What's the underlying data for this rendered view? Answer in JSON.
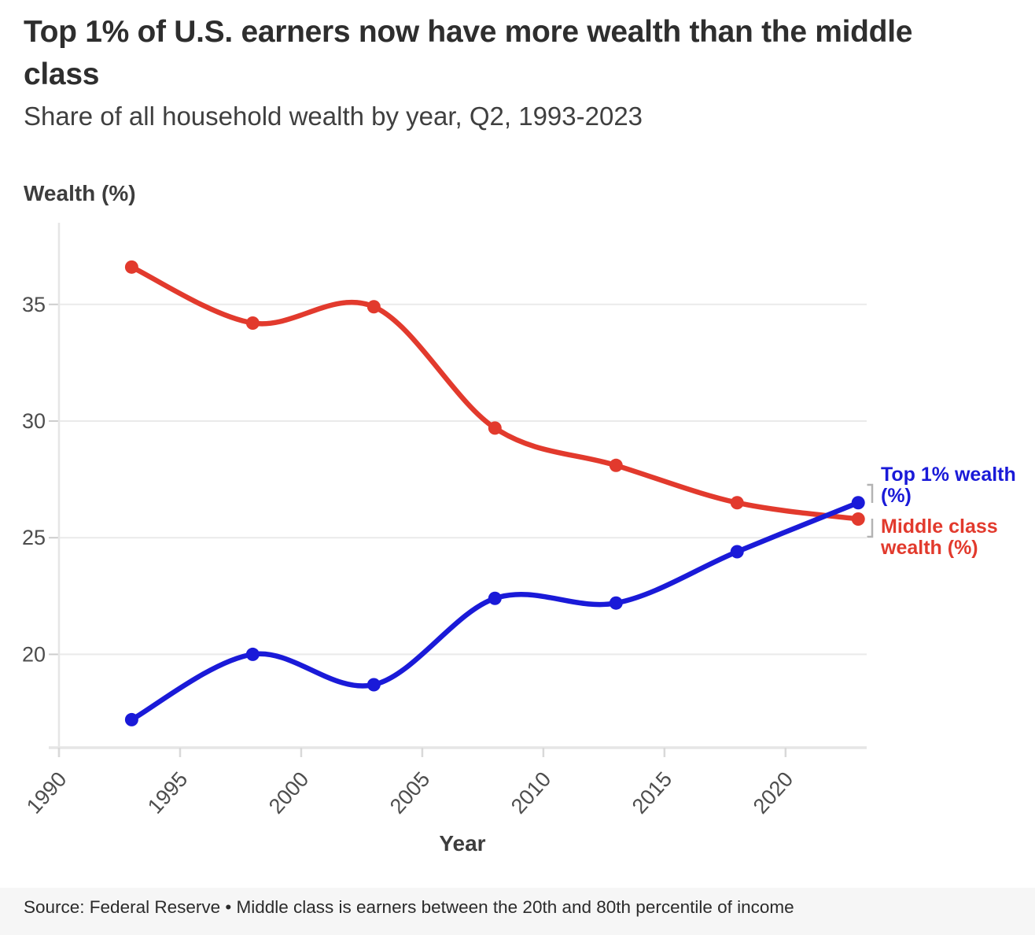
{
  "header": {
    "title": "Top 1% of U.S. earners now have more wealth than the middle class",
    "subtitle": "Share of all household wealth by year, Q2, 1993-2023"
  },
  "chart_data": {
    "type": "line",
    "title": "Top 1% of U.S. earners now have more wealth than the middle class",
    "subtitle": "Share of all household wealth by year, Q2, 1993-2023",
    "x": [
      1993,
      1998,
      2003,
      2008,
      2013,
      2018,
      2023
    ],
    "series": [
      {
        "name": "Top 1% wealth (%)",
        "color": "#1a1ad8",
        "values": [
          17.2,
          20.0,
          18.7,
          22.4,
          22.2,
          24.4,
          26.5
        ]
      },
      {
        "name": "Middle class wealth (%)",
        "color": "#e23a2d",
        "values": [
          36.6,
          34.2,
          34.9,
          29.7,
          28.1,
          26.5,
          25.8
        ]
      }
    ],
    "xlabel": "Year",
    "ylabel": "Wealth (%)",
    "x_ticks": [
      1990,
      1995,
      2000,
      2005,
      2010,
      2015,
      2020
    ],
    "y_ticks": [
      20,
      25,
      30,
      35
    ],
    "xlim": [
      1990,
      2023.35
    ],
    "ylim": [
      16.0,
      38.5
    ],
    "grid": "horizontal",
    "legend_position": "right-annotations",
    "marker": "circle",
    "curve": "smooth"
  },
  "annotations": {
    "top1": {
      "lines": [
        "Top 1% wealth",
        "(%)"
      ]
    },
    "middle": {
      "lines": [
        "Middle class",
        "wealth (%)"
      ]
    }
  },
  "footer": {
    "source": "Source: Federal Reserve • Middle class is earners between the 20th and 80th percentile of income"
  },
  "colors": {
    "top1_series": "#1a1ad8",
    "middle_series": "#e23a2d",
    "grid": "#eaeaea",
    "axis_line": "#e6e6e6",
    "y_tick_stub": "#cdcdcd",
    "x_tick": "#d9d9d9",
    "tick_text": "#4d4d4d",
    "title_text": "#2e2e2e",
    "bracket": "#b3b3b3",
    "footer_bg": "#f6f6f6"
  }
}
